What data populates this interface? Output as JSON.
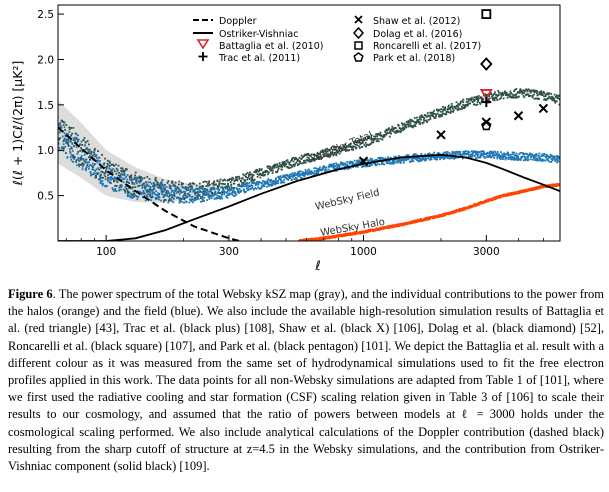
{
  "figure": {
    "ylabel": "ℓ(ℓ + 1)Cℓ/(2π) [μK²]",
    "xlabel": "ℓ",
    "legend_left": [
      "Doppler",
      "Ostriker-Vishniac",
      "Battaglia et al. (2010)",
      "Trac et al. (2011)"
    ],
    "legend_right": [
      "Shaw et al. (2012)",
      "Dolag et al. (2016)",
      "Roncarelli et al. (2017)",
      "Park et al. (2018)"
    ],
    "annotations": [
      "WebSky Total",
      "WebSky Field",
      "WebSky Halo"
    ],
    "colors": {
      "total": "#2f4f47",
      "field": "#1f77b4",
      "halo": "#ff4500",
      "battaglia": "#d62728",
      "lines": "#000000"
    }
  },
  "chart_data": {
    "type": "scatter",
    "xscale": "log",
    "xlim": [
      65,
      5800
    ],
    "ylim": [
      0,
      2.6
    ],
    "xticks": [
      100,
      300,
      1000,
      3000
    ],
    "xtick_labels": [
      "100",
      "300",
      "1000",
      "3000"
    ],
    "yticks": [
      0.5,
      1.0,
      1.5,
      2.0,
      2.5
    ],
    "ytick_labels": [
      "0.5",
      "1.0",
      "1.5",
      "2.0",
      "2.5"
    ],
    "series": [
      {
        "name": "WebSky Total",
        "x": [
          65,
          80,
          100,
          130,
          170,
          220,
          300,
          400,
          550,
          800,
          1000,
          1400,
          2000,
          2500,
          3000,
          3500,
          4200,
          5000,
          5800
        ],
        "y": [
          1.2,
          1.0,
          0.75,
          0.62,
          0.55,
          0.55,
          0.62,
          0.75,
          0.88,
          1.0,
          1.08,
          1.25,
          1.42,
          1.52,
          1.57,
          1.62,
          1.63,
          1.6,
          1.55
        ]
      },
      {
        "name": "WebSky Field",
        "x": [
          65,
          80,
          100,
          130,
          170,
          220,
          300,
          400,
          550,
          800,
          1000,
          1400,
          2000,
          2500,
          3000,
          3500,
          4200,
          5000,
          5800
        ],
        "y": [
          1.15,
          0.95,
          0.72,
          0.58,
          0.52,
          0.5,
          0.54,
          0.62,
          0.72,
          0.82,
          0.86,
          0.9,
          0.94,
          0.95,
          0.95,
          0.94,
          0.93,
          0.92,
          0.9
        ]
      },
      {
        "name": "WebSky Halo",
        "x": [
          560,
          700,
          1000,
          1400,
          2000,
          2500,
          3000,
          3500,
          4200,
          5000,
          5800
        ],
        "y": [
          0.0,
          0.03,
          0.1,
          0.18,
          0.28,
          0.36,
          0.44,
          0.5,
          0.55,
          0.6,
          0.62
        ]
      },
      {
        "name": "Doppler",
        "x": [
          65,
          80,
          100,
          130,
          170,
          220,
          300,
          330
        ],
        "y": [
          1.25,
          1.02,
          0.78,
          0.55,
          0.33,
          0.16,
          0.03,
          0.0
        ]
      },
      {
        "name": "Ostriker-Vishniac",
        "x": [
          65,
          80,
          100,
          130,
          170,
          220,
          300,
          400,
          550,
          800,
          1000,
          1400,
          2000,
          2500,
          3000,
          3500,
          4200,
          5000,
          5800
        ],
        "y": [
          0.0,
          0.0,
          0.0,
          0.03,
          0.12,
          0.24,
          0.38,
          0.52,
          0.66,
          0.79,
          0.85,
          0.92,
          0.95,
          0.92,
          0.86,
          0.79,
          0.7,
          0.62,
          0.55
        ]
      },
      {
        "name": "Battaglia et al. (2010)",
        "x": [
          3000
        ],
        "y": [
          1.62
        ]
      },
      {
        "name": "Trac et al. (2011)",
        "x": [
          3000
        ],
        "y": [
          1.53
        ]
      },
      {
        "name": "Shaw et al. (2012)",
        "x": [
          1000,
          2000,
          3000,
          4000,
          5000
        ],
        "y": [
          0.88,
          1.17,
          1.31,
          1.38,
          1.46
        ]
      },
      {
        "name": "Dolag et al. (2016)",
        "x": [
          3000
        ],
        "y": [
          1.95
        ]
      },
      {
        "name": "Roncarelli et al. (2017)",
        "x": [
          3000
        ],
        "y": [
          2.5
        ]
      },
      {
        "name": "Park et al. (2018)",
        "x": [
          3000
        ],
        "y": [
          1.27
        ]
      }
    ]
  },
  "caption": {
    "label": "Figure 6",
    "text": ". The power spectrum of the total Websky kSZ map (gray), and the individual contributions to the power from the halos (orange) and the field (blue). We also include the available high-resolution simulation results of Battaglia et al. (red triangle) [43], Trac et al. (black plus) [108], Shaw et al. (black X) [106], Dolag et al. (black diamond) [52], Roncarelli et al. (black square) [107], and Park et al. (black pentagon) [101]. We depict the Battaglia et al. result with a different colour as it was measured from the same set of hydrodynamical simulations used to fit the free electron profiles applied in this work. The data points for all non-Websky simulations are adapted from Table 1 of [101], where we first used the radiative cooling and star formation (CSF) scaling relation given in Table 3 of [106] to scale their results to our cosmology, and assumed that the ratio of powers between models at ℓ = 3000 holds under the cosmological scaling performed. We also include analytical calculations of the Doppler contribution (dashed black) resulting from the sharp cutoff of structure at z=4.5 in the Websky simulations, and the contribution from Ostriker-Vishniac component (solid black) [109]."
  }
}
